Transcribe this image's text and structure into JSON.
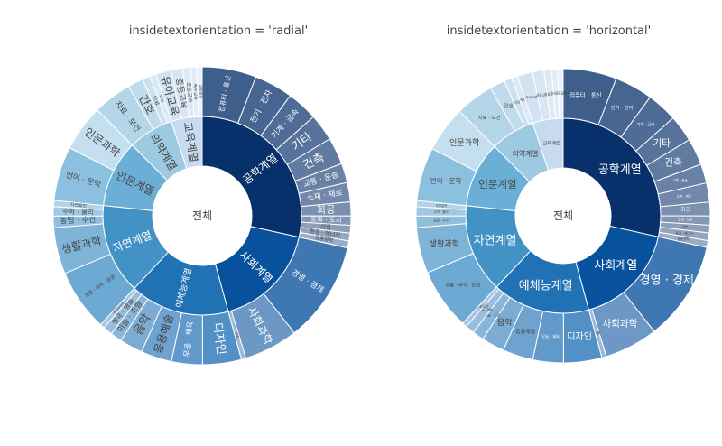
{
  "chart_data": {
    "type": "sunburst",
    "panels": [
      {
        "title": "insidetextorientation = 'radial'",
        "orientation": "radial"
      },
      {
        "title": "insidetextorientation = 'horizontal'",
        "orientation": "horizontal"
      }
    ],
    "root": "전체",
    "colors": {
      "공학계열": "#08306b",
      "사회계열": "#08519c",
      "예체능계열": "#2171b5",
      "자연계열": "#4292c6",
      "인문계열": "#6baed6",
      "의약계열": "#9ecae1",
      "교육계열": "#c6dbef",
      "기타": "#dbe7f3"
    },
    "categories": [
      {
        "name": "공학계열",
        "children": [
          {
            "name": "컴퓨터 · 통신",
            "value": 7
          },
          {
            "name": "전기 · 전자",
            "value": 5
          },
          {
            "name": "기계 · 금속",
            "value": 4
          },
          {
            "name": "기타",
            "value": 3.5
          },
          {
            "name": "건축",
            "value": 3.5
          },
          {
            "name": "교통 · 운송",
            "value": 2.5
          },
          {
            "name": "소재 · 재료",
            "value": 2.5
          },
          {
            "name": "화공",
            "value": 1.8
          },
          {
            "name": "토목 · 도시",
            "value": 1.2
          },
          {
            "name": "산업",
            "value": 1
          },
          {
            "name": "환경 · 에너지",
            "value": 1
          },
          {
            "name": "응용공학",
            "value": 0.9
          }
        ]
      },
      {
        "name": "사회계열",
        "children": [
          {
            "name": "경영 · 경제",
            "value": 13
          },
          {
            "name": "사회과학",
            "value": 7
          },
          {
            "name": "법률",
            "value": 0.6
          }
        ]
      },
      {
        "name": "예체능계열",
        "children": [
          {
            "name": "디자인",
            "value": 5
          },
          {
            "name": "무용 · 체육",
            "value": 4
          },
          {
            "name": "응용예술",
            "value": 4
          },
          {
            "name": "음악",
            "value": 3
          },
          {
            "name": "미술 · 조형",
            "value": 1.5
          },
          {
            "name": "연극 · 영화",
            "value": 1.2
          },
          {
            "name": "예체능일반",
            "value": 0.6
          }
        ]
      },
      {
        "name": "자연계열",
        "children": [
          {
            "name": "생물 · 화학 · 환경",
            "value": 8
          },
          {
            "name": "생활과학",
            "value": 6
          },
          {
            "name": "농림 · 수산",
            "value": 1.5
          },
          {
            "name": "수학 · 물리",
            "value": 1.2
          },
          {
            "name": "자연일반",
            "value": 0.8
          }
        ]
      },
      {
        "name": "인문계열",
        "children": [
          {
            "name": "언어 · 문학",
            "value": 7
          },
          {
            "name": "인문과학",
            "value": 6
          }
        ]
      },
      {
        "name": "의약계열",
        "children": [
          {
            "name": "치료 · 보건",
            "value": 5
          },
          {
            "name": "간호",
            "value": 2
          },
          {
            "name": "의료",
            "value": 1
          },
          {
            "name": "약학",
            "value": 0.8
          }
        ]
      },
      {
        "name": "교육계열",
        "children": [
          {
            "name": "유아교육",
            "value": 2
          },
          {
            "name": "중등교육",
            "value": 1.5
          },
          {
            "name": "초등교육",
            "value": 1
          },
          {
            "name": "특수교육",
            "value": 0.8
          },
          {
            "name": "교육일반",
            "value": 0.7
          }
        ]
      }
    ]
  }
}
